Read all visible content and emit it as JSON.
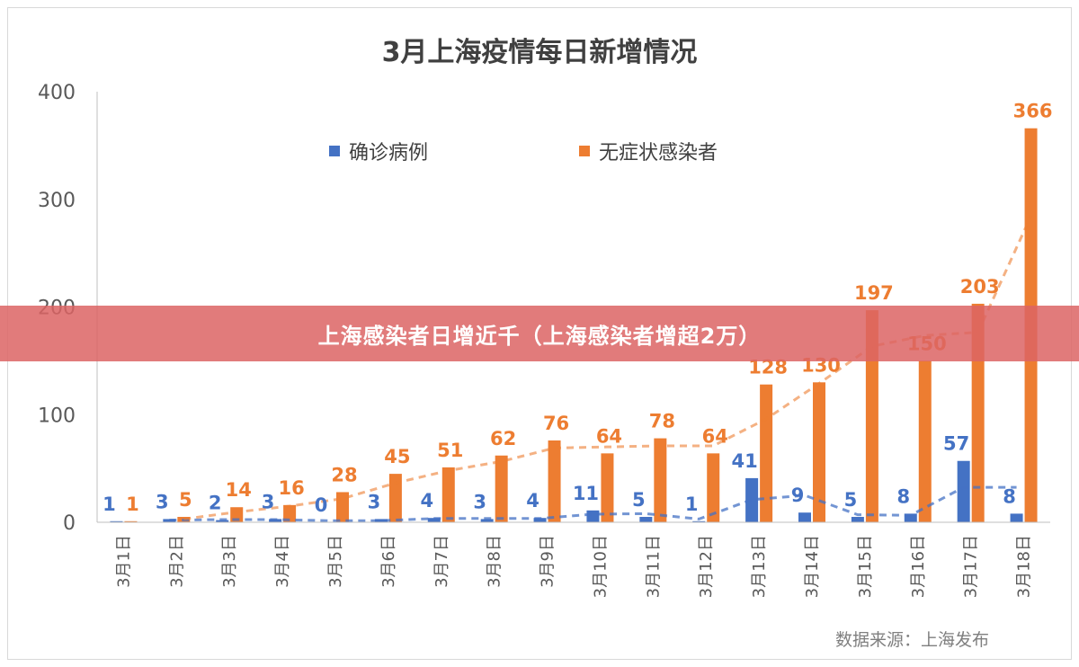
{
  "colors": {
    "confirmed": "#4472c4",
    "asymptomatic": "#ed7d31",
    "axis_text": "#595959",
    "title": "#404040"
  },
  "banner": {
    "text": "上海感染者日增近千（上海感染者增超2万）"
  },
  "source": "数据来源：上海发布",
  "chart_data": {
    "type": "bar",
    "title": "3月上海疫情每日新增情况",
    "xlabel": "",
    "ylabel": "",
    "ylim": [
      0,
      400
    ],
    "yticks": [
      0,
      100,
      200,
      300,
      400
    ],
    "grid": false,
    "legend_position": "top",
    "categories": [
      "3月1日",
      "3月2日",
      "3月3日",
      "3月4日",
      "3月5日",
      "3月6日",
      "3月7日",
      "3月8日",
      "3月9日",
      "3月10日",
      "3月11日",
      "3月12日",
      "3月13日",
      "3月14日",
      "3月15日",
      "3月16日",
      "3月17日",
      "3月18日"
    ],
    "series": [
      {
        "name": "确诊病例",
        "values": [
          1,
          3,
          2,
          3,
          0,
          3,
          4,
          3,
          4,
          11,
          5,
          1,
          41,
          9,
          5,
          8,
          57,
          8
        ]
      },
      {
        "name": "无症状感染者",
        "values": [
          1,
          5,
          14,
          16,
          28,
          45,
          51,
          62,
          76,
          64,
          78,
          64,
          128,
          130,
          197,
          150,
          203,
          366
        ]
      }
    ],
    "trendlines": "moving-average-dashed"
  }
}
